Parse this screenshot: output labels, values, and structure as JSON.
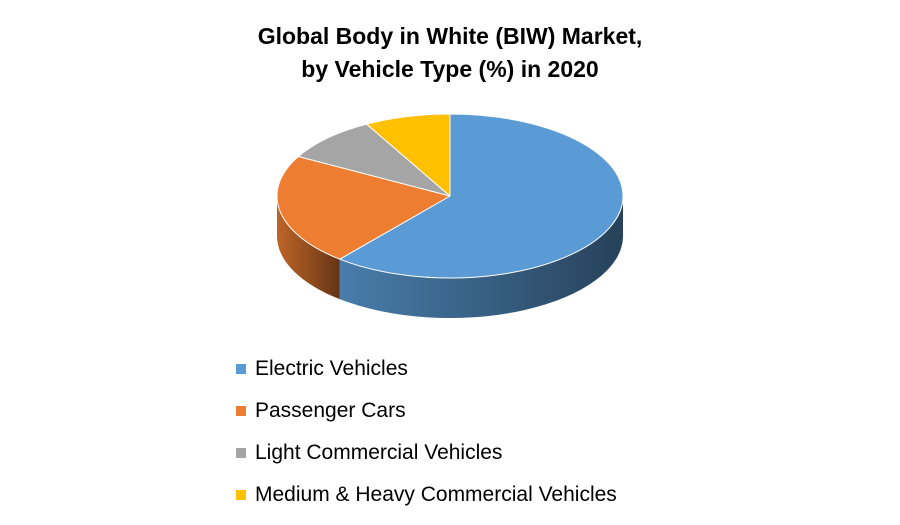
{
  "chart_data": {
    "type": "pie",
    "style": "3d",
    "title": [
      "Global Body in White (BIW) Market,",
      "by Vehicle Type (%) in 2020"
    ],
    "legend_position": "bottom",
    "categories": [
      "Electric Vehicles",
      "Passenger Cars",
      "Light Commercial Vehicles",
      "Medium & Heavy Commercial Vehicles"
    ],
    "values": [
      61,
      22,
      9,
      8
    ],
    "colors": [
      "#5B9BD5",
      "#ED7D31",
      "#A5A5A5",
      "#FFC000"
    ]
  }
}
